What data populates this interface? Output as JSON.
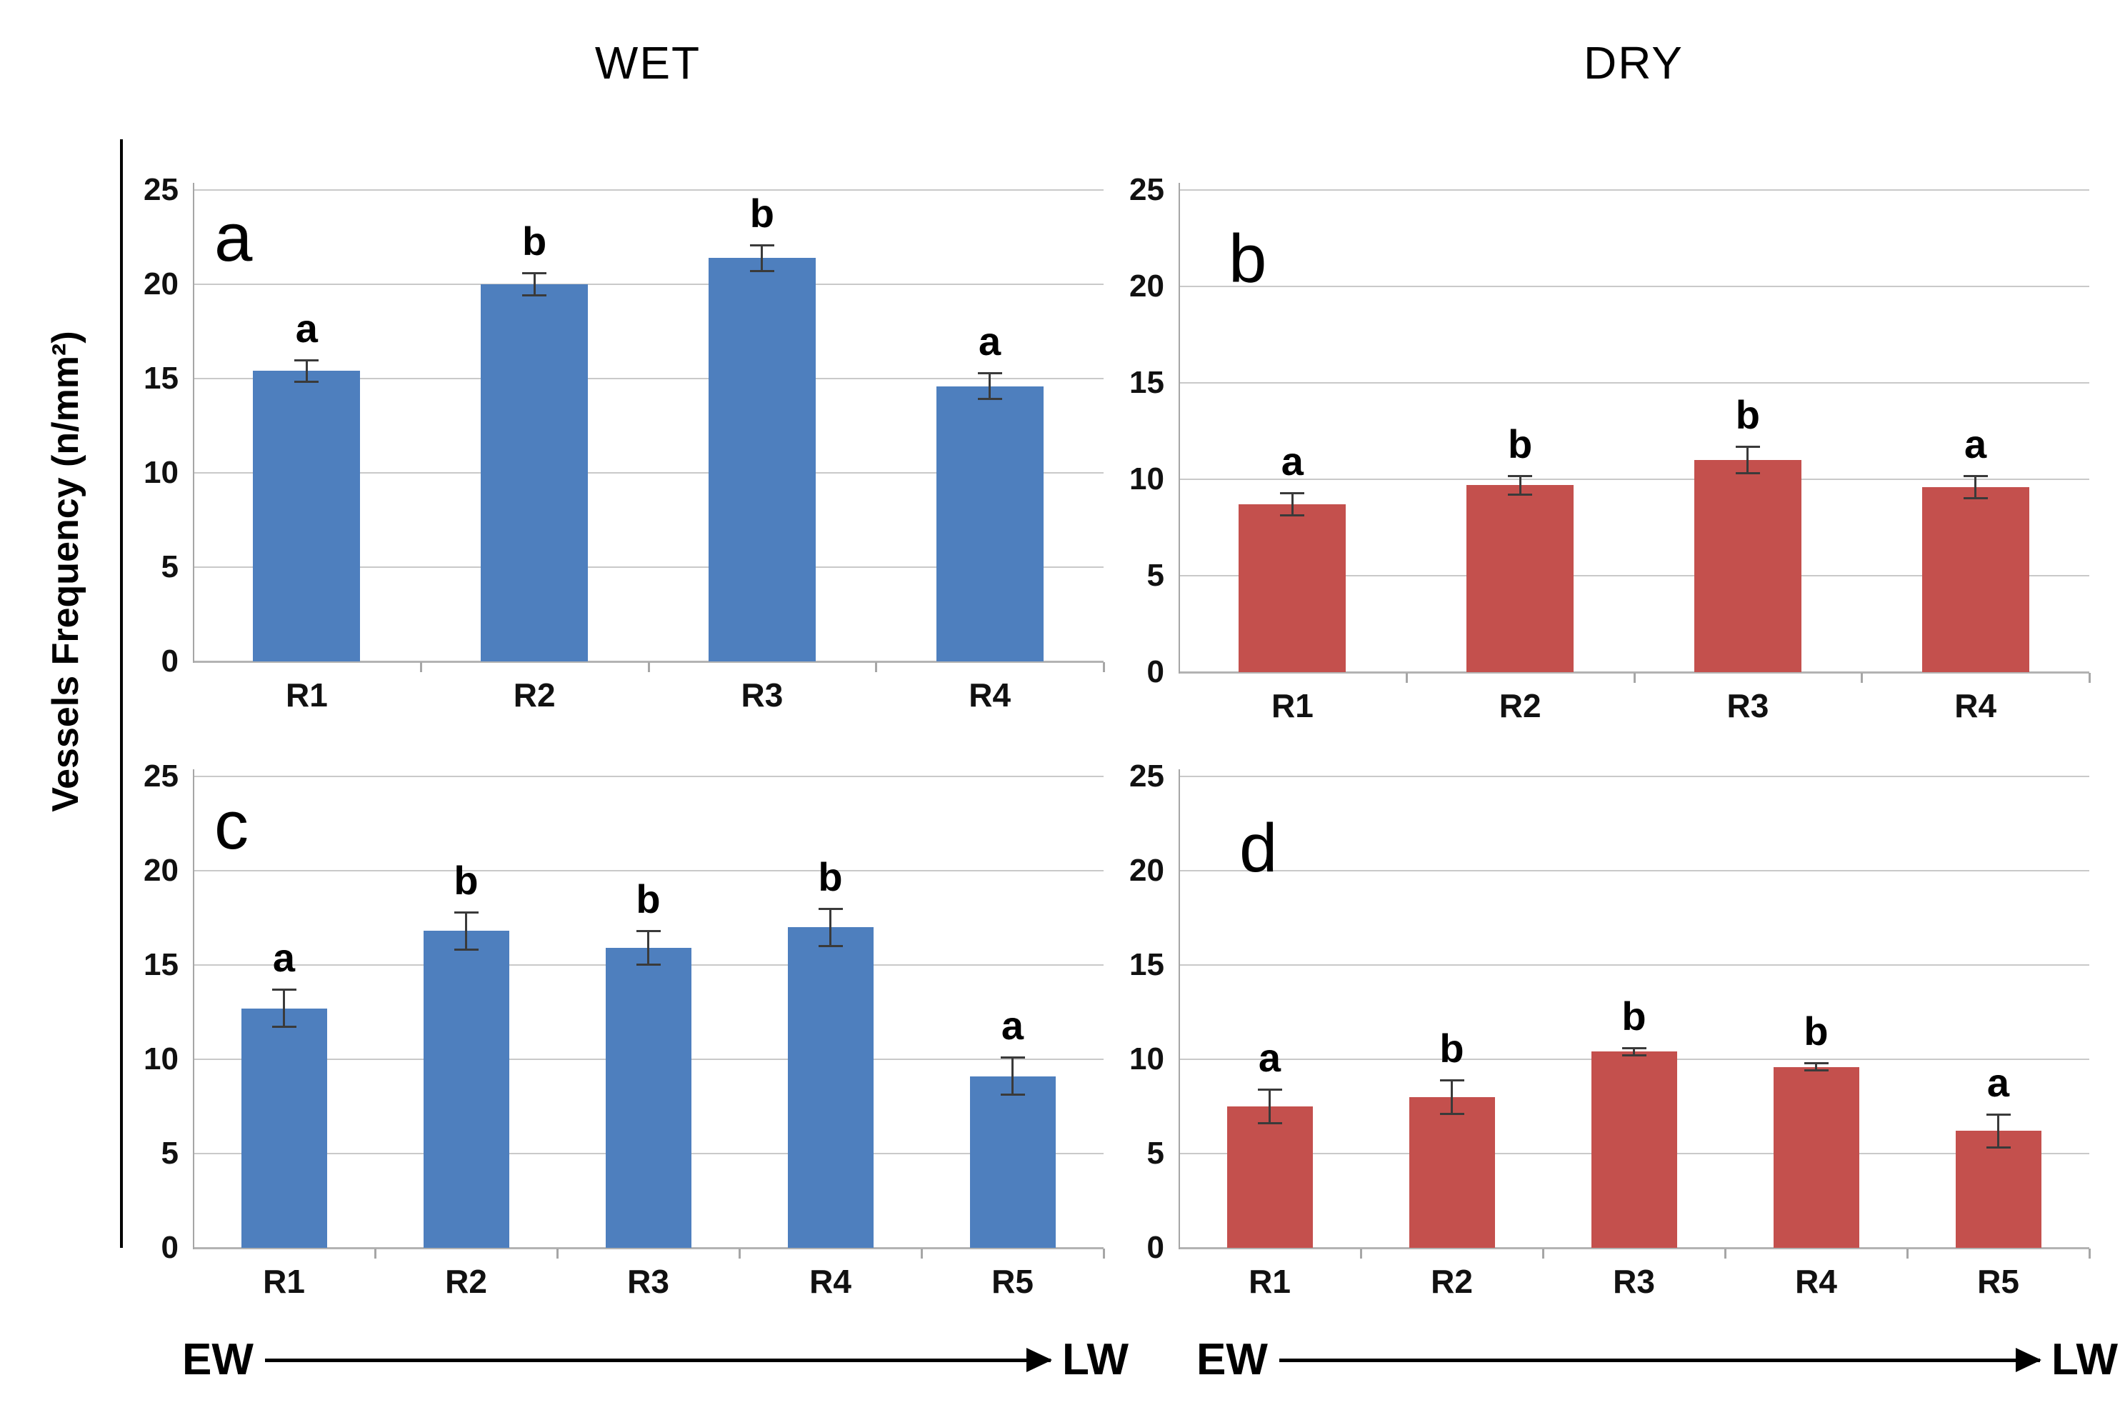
{
  "figure": {
    "ylabel": "Vessels Frequency (n/mm²)",
    "column_titles": {
      "left": "WET",
      "right": "DRY"
    },
    "direction_arrow": {
      "start_label": "EW",
      "end_label": "LW"
    }
  },
  "colors": {
    "wet_bar": "#4e7fbe",
    "dry_bar": "#c4504d",
    "gridline": "#c9c9c9",
    "baseline": "#b3b3b3",
    "axis_line": "#a6a6a6",
    "error_bar": "#3a3a3a",
    "text": "#000000"
  },
  "chart_data": [
    {
      "panel_letter": "a",
      "type": "bar",
      "condition": "WET",
      "position": "top-left",
      "categories": [
        "R1",
        "R2",
        "R3",
        "R4"
      ],
      "values": [
        15.4,
        20.0,
        21.4,
        14.6
      ],
      "error_bars": [
        0.6,
        0.6,
        0.7,
        0.7
      ],
      "sig_letters": [
        "a",
        "b",
        "b",
        "a"
      ],
      "bar_color": "#4e7fbe",
      "ylim": [
        0,
        25
      ],
      "yticks": [
        0,
        5,
        10,
        15,
        20,
        25
      ],
      "grid": true
    },
    {
      "panel_letter": "b",
      "type": "bar",
      "condition": "DRY",
      "position": "top-right",
      "categories": [
        "R1",
        "R2",
        "R3",
        "R4"
      ],
      "values": [
        8.7,
        9.7,
        11.0,
        9.6
      ],
      "error_bars": [
        0.6,
        0.5,
        0.7,
        0.6
      ],
      "sig_letters": [
        "a",
        "b",
        "b",
        "a"
      ],
      "bar_color": "#c4504d",
      "ylim": [
        0,
        25
      ],
      "yticks": [
        0,
        5,
        10,
        15,
        20,
        25
      ],
      "grid": true
    },
    {
      "panel_letter": "c",
      "type": "bar",
      "condition": "WET",
      "position": "bottom-left",
      "categories": [
        "R1",
        "R2",
        "R3",
        "R4",
        "R5"
      ],
      "values": [
        12.7,
        16.8,
        15.9,
        17.0,
        9.1
      ],
      "error_bars": [
        1.0,
        1.0,
        0.9,
        1.0,
        1.0
      ],
      "sig_letters": [
        "a",
        "b",
        "b",
        "b",
        "a"
      ],
      "bar_color": "#4e7fbe",
      "ylim": [
        0,
        25
      ],
      "yticks": [
        0,
        5,
        10,
        15,
        20,
        25
      ],
      "grid": true
    },
    {
      "panel_letter": "d",
      "type": "bar",
      "condition": "DRY",
      "position": "bottom-right",
      "categories": [
        "R1",
        "R2",
        "R3",
        "R4",
        "R5"
      ],
      "values": [
        7.5,
        8.0,
        10.4,
        9.6,
        6.2
      ],
      "error_bars": [
        0.9,
        0.9,
        0.2,
        0.2,
        0.9
      ],
      "sig_letters": [
        "a",
        "b",
        "b",
        "b",
        "a"
      ],
      "bar_color": "#c4504d",
      "ylim": [
        0,
        25
      ],
      "yticks": [
        0,
        5,
        10,
        15,
        20,
        25
      ],
      "grid": true
    }
  ]
}
